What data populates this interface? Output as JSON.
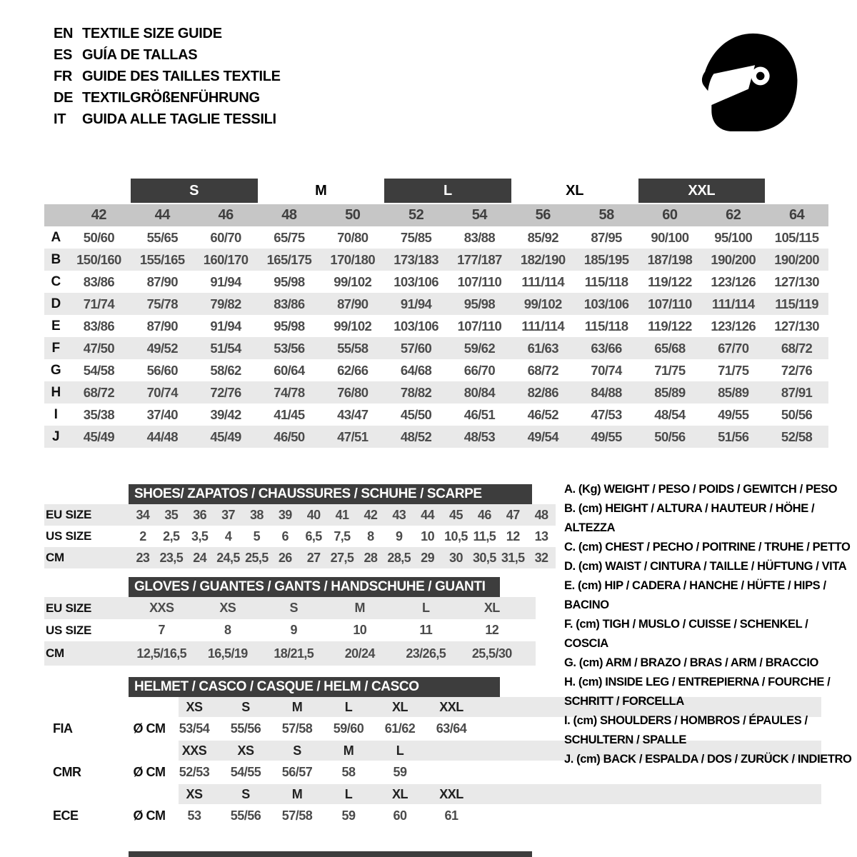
{
  "colors": {
    "dark_bar": "#3d3d3d",
    "numbers_band": "#c6c6c6",
    "stripe": "#e9e9e9",
    "value_text": "#4b4b4b"
  },
  "header": {
    "icon": "full-face-helmet-icon",
    "languages": [
      {
        "code": "EN",
        "title": "TEXTILE SIZE GUIDE"
      },
      {
        "code": "ES",
        "title": "GUÍA DE TALLAS"
      },
      {
        "code": "FR",
        "title": "GUIDE DES TAILLES TEXTILE"
      },
      {
        "code": "DE",
        "title": "TEXTILGRÖßENFÜHRUNG"
      },
      {
        "code": "IT",
        "title": "GUIDA ALLE TAGLIE TESSILI"
      }
    ]
  },
  "main_table": {
    "bands": [
      {
        "label": "S",
        "boxed": true
      },
      {
        "label": "M",
        "boxed": false
      },
      {
        "label": "L",
        "boxed": true
      },
      {
        "label": "XL",
        "boxed": false
      },
      {
        "label": "XXL",
        "boxed": true
      }
    ],
    "sizes": [
      "42",
      "44",
      "46",
      "48",
      "50",
      "52",
      "54",
      "56",
      "58",
      "60",
      "62",
      "64"
    ],
    "rows": [
      {
        "label": "A",
        "values": [
          "50/60",
          "55/65",
          "60/70",
          "65/75",
          "70/80",
          "75/85",
          "83/88",
          "85/92",
          "87/95",
          "90/100",
          "95/100",
          "105/115"
        ]
      },
      {
        "label": "B",
        "values": [
          "150/160",
          "155/165",
          "160/170",
          "165/175",
          "170/180",
          "173/183",
          "177/187",
          "182/190",
          "185/195",
          "187/198",
          "190/200",
          "190/200"
        ]
      },
      {
        "label": "C",
        "values": [
          "83/86",
          "87/90",
          "91/94",
          "95/98",
          "99/102",
          "103/106",
          "107/110",
          "111/114",
          "115/118",
          "119/122",
          "123/126",
          "127/130"
        ]
      },
      {
        "label": "D",
        "values": [
          "71/74",
          "75/78",
          "79/82",
          "83/86",
          "87/90",
          "91/94",
          "95/98",
          "99/102",
          "103/106",
          "107/110",
          "111/114",
          "115/119"
        ]
      },
      {
        "label": "E",
        "values": [
          "83/86",
          "87/90",
          "91/94",
          "95/98",
          "99/102",
          "103/106",
          "107/110",
          "111/114",
          "115/118",
          "119/122",
          "123/126",
          "127/130"
        ]
      },
      {
        "label": "F",
        "values": [
          "47/50",
          "49/52",
          "51/54",
          "53/56",
          "55/58",
          "57/60",
          "59/62",
          "61/63",
          "63/66",
          "65/68",
          "67/70",
          "68/72"
        ]
      },
      {
        "label": "G",
        "values": [
          "54/58",
          "56/60",
          "58/62",
          "60/64",
          "62/66",
          "64/68",
          "66/70",
          "68/72",
          "70/74",
          "71/75",
          "71/75",
          "72/76"
        ]
      },
      {
        "label": "H",
        "values": [
          "68/72",
          "70/74",
          "72/76",
          "74/78",
          "76/80",
          "78/82",
          "80/84",
          "82/86",
          "84/88",
          "85/89",
          "85/89",
          "87/91"
        ]
      },
      {
        "label": "I",
        "values": [
          "35/38",
          "37/40",
          "39/42",
          "41/45",
          "43/47",
          "45/50",
          "46/51",
          "46/52",
          "47/53",
          "48/54",
          "49/55",
          "50/56"
        ]
      },
      {
        "label": "J",
        "values": [
          "45/49",
          "44/48",
          "45/49",
          "46/50",
          "47/51",
          "48/52",
          "48/53",
          "49/54",
          "49/55",
          "50/56",
          "51/56",
          "52/58"
        ]
      }
    ]
  },
  "shoes": {
    "title": "SHOES/ ZAPATOS / CHAUSSURES / SCHUHE / SCARPE",
    "rows": [
      {
        "label": "EU SIZE",
        "striped": true,
        "values": [
          "34",
          "35",
          "36",
          "37",
          "38",
          "39",
          "40",
          "41",
          "42",
          "43",
          "44",
          "45",
          "46",
          "47",
          "48"
        ]
      },
      {
        "label": "US SIZE",
        "striped": false,
        "values": [
          "2",
          "2,5",
          "3,5",
          "4",
          "5",
          "6",
          "6,5",
          "7,5",
          "8",
          "9",
          "10",
          "10,5",
          "11,5",
          "12",
          "13"
        ]
      },
      {
        "label": "CM",
        "striped": true,
        "values": [
          "23",
          "23,5",
          "24",
          "24,5",
          "25,5",
          "26",
          "27",
          "27,5",
          "28",
          "28,5",
          "29",
          "30",
          "30,5",
          "31,5",
          "32"
        ]
      }
    ]
  },
  "gloves": {
    "title": "GLOVES / GUANTES / GANTS / HANDSCHUHE / GUANTI",
    "rows": [
      {
        "label": "EU SIZE",
        "striped": true,
        "values": [
          "XXS",
          "XS",
          "S",
          "M",
          "L",
          "XL"
        ]
      },
      {
        "label": "US SIZE",
        "striped": false,
        "values": [
          "7",
          "8",
          "9",
          "10",
          "11",
          "12"
        ]
      },
      {
        "label": "CM",
        "striped": true,
        "values": [
          "12,5/16,5",
          "16,5/19",
          "18/21,5",
          "20/24",
          "23/26,5",
          "25,5/30"
        ]
      }
    ]
  },
  "helmet": {
    "title": "HELMET / CASCO / CASQUE / HELM / CASCO",
    "groups": [
      {
        "cert": "FIA",
        "unit": "Ø CM",
        "sizes": [
          "XS",
          "S",
          "M",
          "L",
          "XL",
          "XXL"
        ],
        "values": [
          "53/54",
          "55/56",
          "57/58",
          "59/60",
          "61/62",
          "63/64"
        ]
      },
      {
        "cert": "CMR",
        "unit": "Ø CM",
        "sizes": [
          "XXS",
          "XS",
          "S",
          "M",
          "L",
          ""
        ],
        "values": [
          "52/53",
          "54/55",
          "56/57",
          "58",
          "59",
          ""
        ]
      },
      {
        "cert": "ECE",
        "unit": "Ø CM",
        "sizes": [
          "XS",
          "S",
          "M",
          "L",
          "XL",
          "XXL"
        ],
        "values": [
          "53",
          "55/56",
          "57/58",
          "59",
          "60",
          "61"
        ]
      }
    ]
  },
  "legend": {
    "items": [
      "A. (Kg) WEIGHT / PESO / POIDS / GEWITCH / PESO",
      "B. (cm) HEIGHT / ALTURA / HAUTEUR / HÖHE / ALTEZZA",
      "C. (cm) CHEST / PECHO / POITRINE / TRUHE / PETTO",
      "D. (cm) WAIST / CINTURA / TAILLE / HÜFTUNG / VITA",
      "E. (cm) HIP / CADERA / HANCHE / HÜFTE / HIPS /  BACINO",
      "F. (cm) TIGH / MUSLO / CUISSE / SCHENKEL / COSCIA",
      "G. (cm) ARM  / BRAZO / BRAS / ARM / BRACCIO",
      "H. (cm) INSIDE LEG / ENTREPIERNA / FOURCHE / SCHRITT / FORCELLA",
      "I.  (cm) SHOULDERS / HOMBROS / ÉPAULES / SCHULTERN / SPALLE",
      "J. (cm) BACK / ESPALDA / DOS / ZURÜCK / INDIETRO"
    ]
  }
}
